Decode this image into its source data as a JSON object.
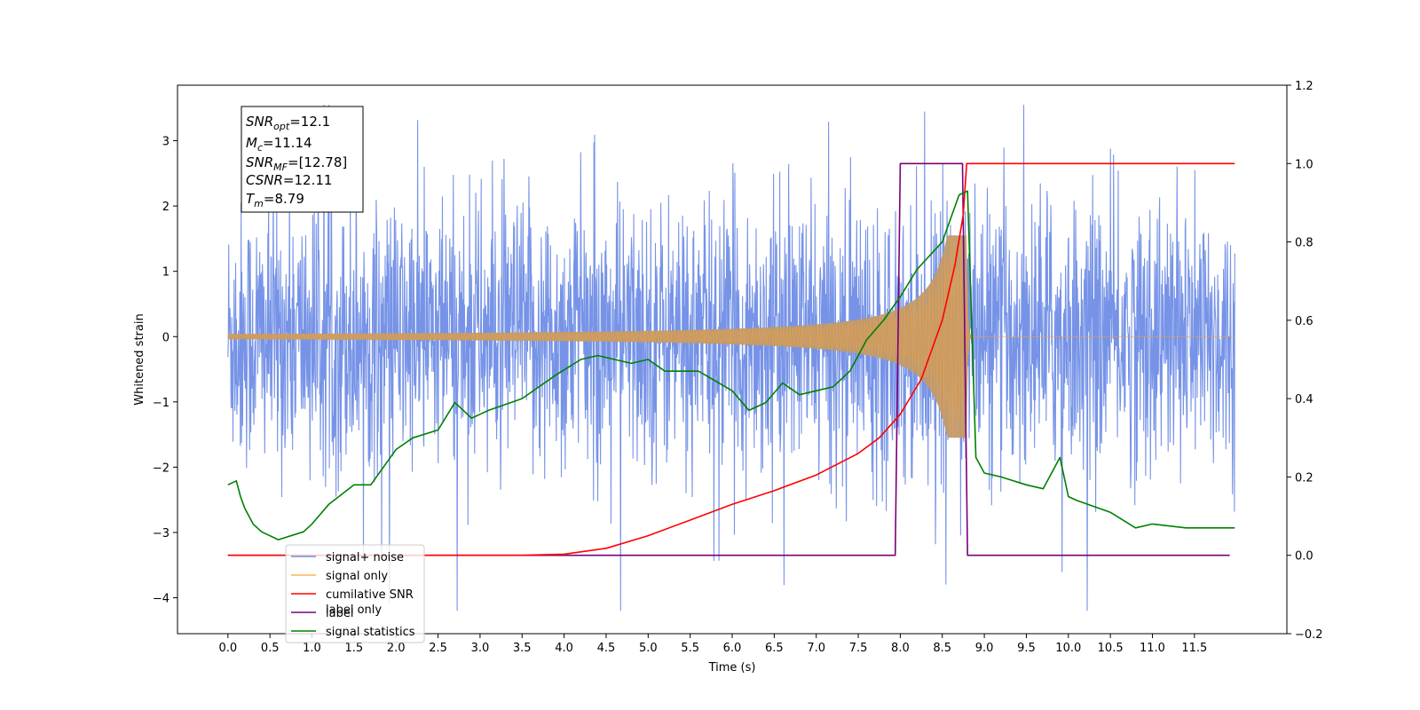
{
  "chart_data": {
    "type": "line",
    "xlabel": "Time (s)",
    "ylabel_left": "Whitened strain",
    "ylabel_right": "",
    "xlim": [
      -0.6,
      12.6
    ],
    "ylim_left": [
      -4.55,
      3.85
    ],
    "ylim_right": [
      -0.2,
      1.2
    ],
    "x_ticks": [
      "0.0",
      "0.5",
      "1.0",
      "1.5",
      "2.0",
      "2.5",
      "3.0",
      "3.5",
      "4.0",
      "4.5",
      "5.0",
      "5.5",
      "6.0",
      "6.5",
      "7.0",
      "7.5",
      "8.0",
      "8.5",
      "9.0",
      "9.5",
      "10.0",
      "10.5",
      "11.0",
      "11.5"
    ],
    "y_ticks_left": [
      "3",
      "2",
      "1",
      "0",
      "−1",
      "−2",
      "−3",
      "−4"
    ],
    "y_ticks_right": [
      "1.2",
      "1.0",
      "0.8",
      "0.6",
      "0.4",
      "0.2",
      "0.0",
      "−0.2"
    ],
    "grid": false,
    "legend_position": "lower-left",
    "info_box": {
      "snr_opt": {
        "main": "SNR",
        "sub": "opt",
        "value": "=12.1"
      },
      "mc": {
        "main": "M",
        "sub": "c",
        "value": "=11.14"
      },
      "snr_mf": {
        "main": "SNR",
        "sub": "MF",
        "value": "=[12.78]"
      },
      "csnr": {
        "main": "CSNR",
        "value": "=12.11"
      },
      "tm": {
        "main": "T",
        "sub": "m",
        "value": "=8.79"
      }
    },
    "colors": {
      "signal_noise": "#6f8de6",
      "signal_only": "#f0a040",
      "signal_only_fill": "#c09a6c",
      "cumulative_snr": "#ff0000",
      "label": "#7a007a",
      "signal_statistics": "#008000"
    },
    "series": [
      {
        "name": "signal+ noise",
        "axis": "left",
        "description_values": "whitened noise, amplitude ~±1.5 with spikes to ~±3.5, t 0.0–11.98",
        "x_range": [
          0.0,
          11.98
        ],
        "envelope": 1.35
      },
      {
        "name": "signal only",
        "axis": "left",
        "x_range": [
          0.0,
          11.98
        ],
        "chirp_start_amplitude": 0.01,
        "peak_amplitude": 1.55,
        "merger_time": 8.79
      },
      {
        "name": "cumilative SNR",
        "axis": "right",
        "x": [
          0.0,
          3.5,
          4.0,
          4.5,
          5.0,
          5.5,
          6.0,
          6.5,
          7.0,
          7.5,
          7.75,
          8.0,
          8.25,
          8.5,
          8.65,
          8.75,
          8.79,
          11.98
        ],
        "y": [
          0.0,
          0.0,
          0.003,
          0.018,
          0.05,
          0.09,
          0.13,
          0.165,
          0.205,
          0.26,
          0.3,
          0.36,
          0.45,
          0.6,
          0.74,
          0.87,
          1.0,
          1.0
        ]
      },
      {
        "name": "label",
        "axis": "right",
        "x": [
          0.0,
          7.94,
          8.0,
          8.74,
          8.8,
          11.92
        ],
        "y": [
          0.0,
          0.0,
          1.0,
          1.0,
          0.0,
          0.0
        ]
      },
      {
        "name": "signal statistics",
        "axis": "right",
        "x": [
          0.0,
          0.1,
          0.15,
          0.2,
          0.3,
          0.4,
          0.6,
          0.9,
          1.0,
          1.2,
          1.5,
          1.7,
          2.0,
          2.2,
          2.5,
          2.7,
          2.9,
          3.1,
          3.5,
          3.9,
          4.2,
          4.4,
          4.6,
          4.8,
          5.0,
          5.2,
          5.6,
          6.0,
          6.2,
          6.4,
          6.6,
          6.8,
          7.0,
          7.2,
          7.4,
          7.6,
          7.8,
          8.0,
          8.2,
          8.5,
          8.7,
          8.8,
          8.9,
          9.0,
          9.2,
          9.5,
          9.7,
          9.9,
          10.0,
          10.1,
          10.5,
          10.8,
          11.0,
          11.4,
          11.6,
          11.9,
          11.98
        ],
        "y": [
          0.18,
          0.19,
          0.15,
          0.12,
          0.08,
          0.06,
          0.04,
          0.06,
          0.08,
          0.13,
          0.18,
          0.18,
          0.27,
          0.3,
          0.32,
          0.39,
          0.35,
          0.37,
          0.4,
          0.46,
          0.5,
          0.51,
          0.5,
          0.49,
          0.5,
          0.47,
          0.47,
          0.42,
          0.37,
          0.39,
          0.44,
          0.41,
          0.42,
          0.43,
          0.47,
          0.55,
          0.6,
          0.66,
          0.73,
          0.8,
          0.92,
          0.93,
          0.25,
          0.21,
          0.2,
          0.18,
          0.17,
          0.25,
          0.15,
          0.14,
          0.11,
          0.07,
          0.08,
          0.07,
          0.07,
          0.07,
          0.07
        ]
      }
    ]
  },
  "legend": {
    "items": [
      {
        "name": "signal+ noise",
        "color": "#6f8de6"
      },
      {
        "name": "signal only",
        "color": "#f7b65a"
      },
      {
        "name": "cumilative SNR",
        "color": "#ff0000"
      },
      {
        "name": "label",
        "color": "#7a007a"
      },
      {
        "name": "signal statistics",
        "color": "#008000"
      }
    ],
    "hidden_label": "label only"
  }
}
